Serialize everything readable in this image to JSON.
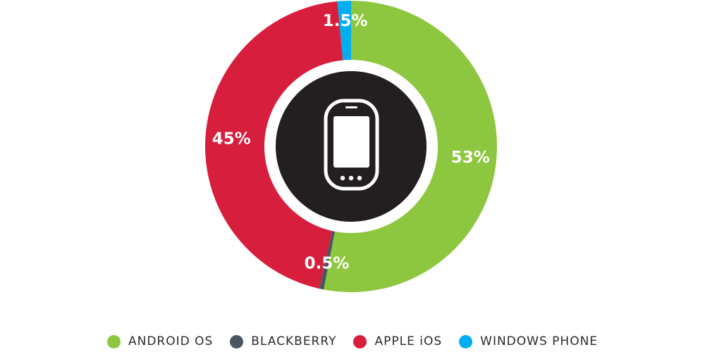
{
  "chart_data": {
    "type": "pie",
    "categories": [
      "ANDROID OS",
      "BLACKBERRY",
      "APPLE iOS",
      "WINDOWS PHONE"
    ],
    "values": [
      53,
      0.5,
      45,
      1.5
    ],
    "labels": [
      "53%",
      "0.5%",
      "45%",
      "1.5%"
    ],
    "colors": [
      "#8dc63f",
      "#4a5560",
      "#d71e3c",
      "#00aeef"
    ],
    "center_icon": "smartphone-icon",
    "center_color": "#231f20",
    "legend_position": "bottom"
  }
}
